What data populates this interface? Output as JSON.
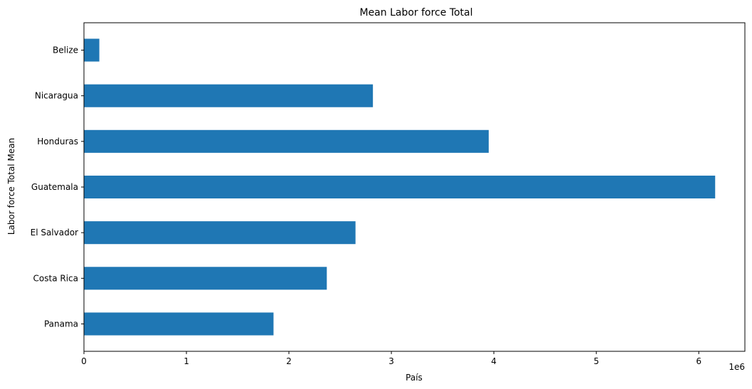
{
  "chart_data": {
    "type": "bar",
    "orientation": "horizontal",
    "title": "Mean Labor force Total",
    "xlabel": "País",
    "ylabel": "Labor force Total Mean",
    "x_offset_label": "1e6",
    "xlim": [
      0,
      6450000
    ],
    "x_ticks": [
      0,
      1000000,
      2000000,
      3000000,
      4000000,
      5000000,
      6000000
    ],
    "x_tick_labels": [
      "0",
      "1",
      "2",
      "3",
      "4",
      "5",
      "6"
    ],
    "grid": false,
    "legend": false,
    "bar_color": "#1f77b4",
    "categories": [
      "Panama",
      "Costa Rica",
      "El Salvador",
      "Guatemala",
      "Honduras",
      "Nicaragua",
      "Belize"
    ],
    "values": [
      1850000,
      2370000,
      2650000,
      6160000,
      3950000,
      2820000,
      150000
    ]
  }
}
